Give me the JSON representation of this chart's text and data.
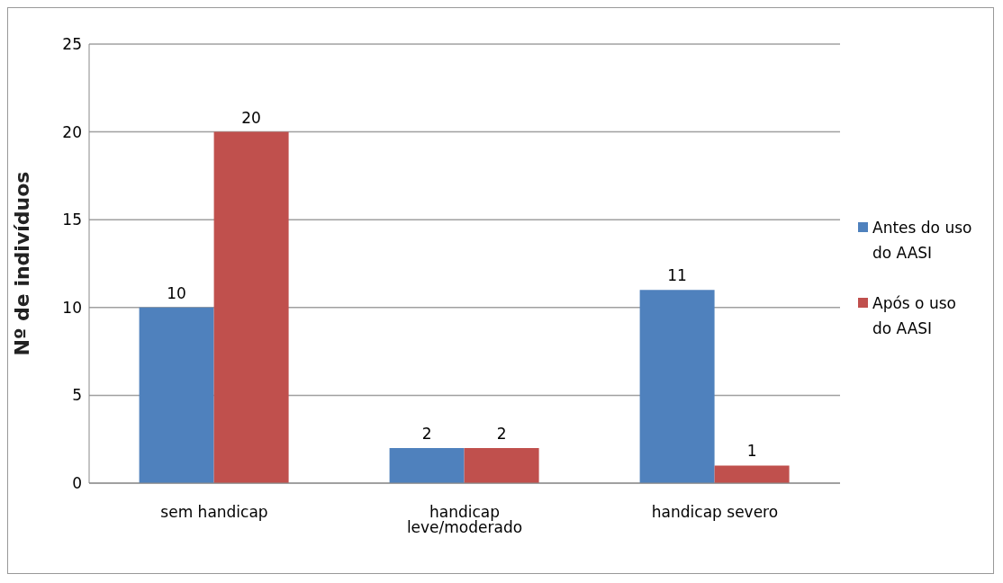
{
  "chart_data": {
    "type": "bar",
    "ylabel": "Nº de indivíduos",
    "categories": [
      "sem handicap",
      "handicap leve/moderado",
      "handicap severo"
    ],
    "series": [
      {
        "name": "Antes do uso do AASI",
        "color": "#4f81bd",
        "values": [
          10,
          2,
          11
        ]
      },
      {
        "name": "Após o uso do AASI",
        "color": "#c0504d",
        "values": [
          20,
          2,
          1
        ]
      }
    ],
    "ylim": [
      0,
      25
    ],
    "yticks": [
      0,
      5,
      10,
      15,
      20,
      25
    ],
    "grid": "y",
    "legend": "right",
    "data_labels": true
  }
}
